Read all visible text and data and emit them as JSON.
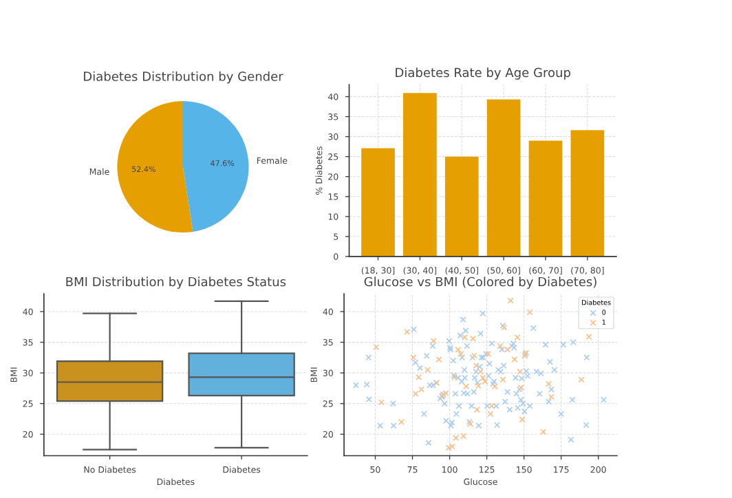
{
  "chart_data": [
    {
      "type": "pie",
      "title": "Diabetes Distribution by Gender",
      "categories": [
        "Female",
        "Male"
      ],
      "values": [
        47.6,
        52.4
      ],
      "colors": [
        "#56b4e9",
        "#e69f00"
      ],
      "value_labels": [
        "47.6%",
        "52.4%"
      ]
    },
    {
      "type": "bar",
      "title": "Diabetes Rate by Age Group",
      "ylabel": "% Diabetes",
      "categories": [
        "(18, 30]",
        "(30, 40]",
        "(40, 50]",
        "(50, 60]",
        "(60, 70]",
        "(70, 80]"
      ],
      "values": [
        27.1,
        40.9,
        25.0,
        39.3,
        29.0,
        31.6
      ],
      "color": "#e69f00",
      "ylim": [
        0,
        43
      ],
      "yticks": [
        0,
        5,
        10,
        15,
        20,
        25,
        30,
        35,
        40
      ],
      "grid": true
    },
    {
      "type": "box",
      "title": "BMI Distribution by Diabetes Status",
      "xlabel": "Diabetes",
      "ylabel": "BMI",
      "categories": [
        "No Diabetes",
        "Diabetes"
      ],
      "colors": [
        "#c9921f",
        "#62b0dc"
      ],
      "boxes": [
        {
          "low": 17.5,
          "q1": 25.4,
          "median": 28.5,
          "q3": 31.9,
          "high": 39.7
        },
        {
          "low": 17.8,
          "q1": 26.3,
          "median": 29.3,
          "q3": 33.2,
          "high": 41.7
        }
      ],
      "ylim": [
        16.5,
        42.9
      ],
      "yticks": [
        20,
        25,
        30,
        35,
        40
      ],
      "grid": "y"
    },
    {
      "type": "scatter",
      "title": "Glucose vs BMI (Colored by Diabetes)",
      "xlabel": "Glucose",
      "ylabel": "BMI",
      "legend_title": "Diabetes",
      "legend": "top right",
      "marker": "cross",
      "grid": true,
      "xlim": [
        29,
        212.6
      ],
      "ylim": [
        16.5,
        42.9
      ],
      "xticks": [
        50,
        75,
        100,
        125,
        150,
        175,
        200
      ],
      "yticks": [
        20,
        25,
        30,
        35,
        40
      ],
      "series": [
        {
          "name": "0",
          "color": "#a9cdf2",
          "x": [
            37.0,
            44.3,
            45.5,
            45.8,
            53.3,
            62.3,
            62.0,
            75.9,
            77.1,
            80.1,
            82.8,
            84.6,
            86.7,
            85.8,
            88.6,
            88.9,
            91.0,
            93.7,
            94.9,
            95.8,
            96.7,
            97.6,
            99.7,
            100.3,
            100.6,
            100.9,
            101.5,
            102.4,
            103.0,
            103.9,
            104.5,
            105.7,
            106.3,
            107.2,
            108.1,
            108.4,
            109.0,
            109.6,
            109.9,
            110.2,
            110.8,
            111.7,
            112.0,
            113.3,
            114.8,
            115.4,
            116.3,
            116.9,
            117.8,
            118.7,
            119.6,
            120.2,
            120.8,
            121.4,
            122.3,
            122.6,
            124.4,
            125.3,
            126.2,
            126.8,
            128.3,
            129.2,
            129.8,
            131.3,
            131.9,
            132.8,
            134.3,
            135.2,
            135.8,
            136.4,
            137.3,
            138.9,
            140.4,
            141.9,
            142.8,
            143.4,
            144.3,
            144.9,
            145.8,
            147.0,
            147.9,
            148.5,
            149.4,
            150.3,
            150.9,
            151.5,
            152.4,
            153.9,
            156.3,
            158.4,
            160.5,
            161.4,
            164.5,
            166.6,
            167.5,
            168.4,
            170.5,
            175.0,
            176.5,
            182.5,
            183.1,
            192.2,
            191.9,
            203.6,
            181.6
          ],
          "values": [
            28.0,
            28.1,
            32.5,
            25.7,
            21.4,
            21.4,
            25.0,
            37.1,
            31.7,
            30.8,
            23.3,
            32.8,
            28.0,
            18.6,
            34.4,
            28.0,
            28.4,
            25.8,
            26.1,
            26.5,
            25.0,
            22.2,
            35.2,
            34.1,
            33.8,
            21.4,
            21.9,
            32.0,
            29.6,
            26.6,
            23.3,
            29.2,
            24.6,
            36.1,
            28.6,
            32.5,
            38.7,
            26.7,
            30.5,
            29.2,
            36.9,
            34.4,
            26.6,
            22.0,
            24.6,
            32.5,
            26.9,
            29.2,
            30.2,
            28.4,
            21.4,
            31.0,
            36.4,
            32.5,
            39.7,
            32.5,
            33.1,
            24.6,
            29.5,
            31.5,
            34.8,
            28.2,
            28.6,
            24.6,
            21.5,
            30.5,
            30.2,
            33.8,
            37.7,
            31.2,
            25.3,
            26.9,
            24.0,
            34.4,
            34.8,
            34.1,
            29.2,
            26.6,
            24.3,
            27.3,
            25.6,
            29.1,
            25.0,
            23.7,
            33.1,
            30.3,
            29.5,
            24.6,
            37.3,
            30.2,
            26.6,
            29.9,
            34.6,
            25.3,
            31.8,
            27.3,
            30.5,
            23.3,
            34.6,
            25.6,
            35.0,
            32.5,
            21.5,
            25.6,
            19.1
          ]
        },
        {
          "name": "1",
          "color": "#f7bf8a",
          "x": [
            50.6,
            54.2,
            67.5,
            71.4,
            75.6,
            77.1,
            79.2,
            81.0,
            85.2,
            89.2,
            91.3,
            92.8,
            95.2,
            97.6,
            99.4,
            101.8,
            103.3,
            104.2,
            105.7,
            107.5,
            109.3,
            110.2,
            111.1,
            113.9,
            115.7,
            116.6,
            117.8,
            118.4,
            119.3,
            120.8,
            122.3,
            123.8,
            125.9,
            127.4,
            128.3,
            130.4,
            134.0,
            135.8,
            136.7,
            138.9,
            141.0,
            143.7,
            145.5,
            147.3,
            147.9,
            148.8,
            150.6,
            151.5,
            153.9,
            163.0,
            166.6,
            168.4,
            188.6,
            193.7
          ],
          "values": [
            34.2,
            25.2,
            22.0,
            36.7,
            32.5,
            26.6,
            29.3,
            27.3,
            30.5,
            35.2,
            28.4,
            32.2,
            26.3,
            26.7,
            17.8,
            18.0,
            29.3,
            19.4,
            33.8,
            33.1,
            19.7,
            35.8,
            27.8,
            21.7,
            35.6,
            32.8,
            31.2,
            24.0,
            27.9,
            30.2,
            29.2,
            28.6,
            33.1,
            23.3,
            24.6,
            27.8,
            34.4,
            28.9,
            37.4,
            33.8,
            41.8,
            32.2,
            35.8,
            30.2,
            27.6,
            22.4,
            32.8,
            33.3,
            39.9,
            20.4,
            28.2,
            26.1,
            28.9,
            35.9
          ]
        }
      ]
    }
  ]
}
